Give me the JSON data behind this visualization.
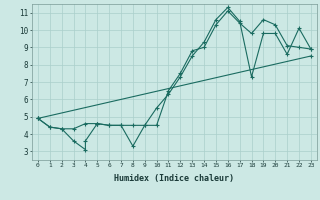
{
  "title": "",
  "xlabel": "Humidex (Indice chaleur)",
  "bg_color": "#cce8e4",
  "grid_color": "#aacfcb",
  "line_color": "#1a6b60",
  "xlim": [
    -0.5,
    23.5
  ],
  "ylim": [
    2.5,
    11.5
  ],
  "xticks": [
    0,
    1,
    2,
    3,
    4,
    5,
    6,
    7,
    8,
    9,
    10,
    11,
    12,
    13,
    14,
    15,
    16,
    17,
    18,
    19,
    20,
    21,
    22,
    23
  ],
  "yticks": [
    3,
    4,
    5,
    6,
    7,
    8,
    9,
    10,
    11
  ],
  "line1_x": [
    0,
    1,
    2,
    3,
    4,
    4,
    5,
    5,
    6,
    7,
    8,
    9,
    10,
    11,
    12,
    13,
    14,
    15,
    16,
    17,
    18,
    19,
    20,
    21,
    22,
    23
  ],
  "line1_y": [
    4.9,
    4.4,
    4.3,
    3.6,
    3.1,
    3.6,
    4.6,
    4.6,
    4.5,
    4.5,
    3.3,
    4.5,
    4.5,
    6.5,
    7.5,
    8.8,
    9.0,
    10.3,
    11.1,
    10.4,
    9.8,
    10.6,
    10.3,
    9.1,
    9.0,
    8.9
  ],
  "line2_x": [
    0,
    1,
    2,
    3,
    4,
    5,
    6,
    7,
    8,
    9,
    10,
    11,
    12,
    13,
    14,
    15,
    16,
    17,
    18,
    19,
    20,
    21,
    22,
    23
  ],
  "line2_y": [
    4.9,
    4.4,
    4.3,
    4.3,
    4.6,
    4.6,
    4.5,
    4.5,
    4.5,
    4.5,
    5.5,
    6.3,
    7.3,
    8.5,
    9.3,
    10.6,
    11.3,
    10.5,
    7.3,
    9.8,
    9.8,
    8.6,
    10.1,
    8.9
  ],
  "line3_x": [
    0,
    23
  ],
  "line3_y": [
    4.9,
    8.5
  ]
}
